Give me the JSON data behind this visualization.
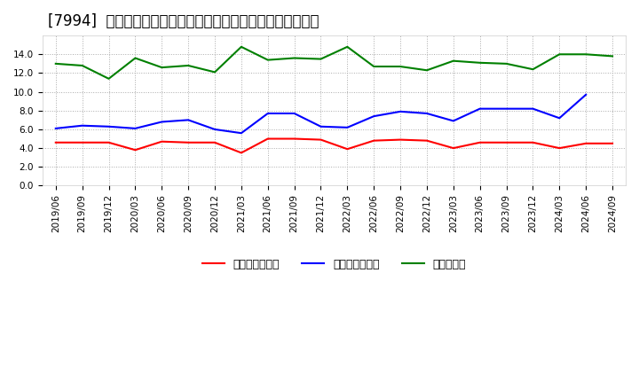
{
  "title": "[7994]  売上債権回転率、買入債務回転率、在庫回転率の推移",
  "x_labels": [
    "2019/06",
    "2019/09",
    "2019/12",
    "2020/03",
    "2020/06",
    "2020/09",
    "2020/12",
    "2021/03",
    "2021/06",
    "2021/09",
    "2021/12",
    "2022/03",
    "2022/06",
    "2022/09",
    "2022/12",
    "2023/03",
    "2023/06",
    "2023/09",
    "2023/12",
    "2024/03",
    "2024/06",
    "2024/09"
  ],
  "red_values": [
    4.6,
    4.6,
    4.6,
    3.8,
    4.7,
    4.6,
    4.6,
    3.5,
    5.0,
    5.0,
    4.9,
    3.9,
    4.8,
    4.9,
    4.8,
    4.0,
    4.6,
    4.6,
    4.6,
    4.0,
    4.5,
    4.5
  ],
  "blue_values": [
    6.1,
    6.4,
    6.3,
    6.1,
    6.8,
    7.0,
    6.0,
    5.6,
    7.7,
    7.7,
    6.3,
    6.2,
    7.4,
    7.9,
    7.7,
    6.9,
    8.2,
    8.2,
    8.2,
    7.2,
    9.7,
    null
  ],
  "green_values": [
    13.0,
    12.8,
    11.4,
    13.6,
    12.6,
    12.8,
    12.1,
    14.8,
    13.4,
    13.6,
    13.5,
    14.8,
    12.7,
    12.7,
    12.3,
    13.3,
    13.1,
    13.0,
    12.4,
    14.0,
    14.0,
    13.8
  ],
  "ylim": [
    0.0,
    16.0
  ],
  "yticks": [
    0.0,
    2.0,
    4.0,
    6.0,
    8.0,
    10.0,
    12.0,
    14.0
  ],
  "red_label": "売上債権回転率",
  "blue_label": "買入債務回転率",
  "green_label": "在庫回転率",
  "red_color": "#FF0000",
  "blue_color": "#0000FF",
  "green_color": "#008000",
  "bg_color": "#ffffff",
  "grid_color": "#aaaaaa",
  "title_fontsize": 12,
  "legend_fontsize": 9,
  "tick_fontsize": 7.5
}
